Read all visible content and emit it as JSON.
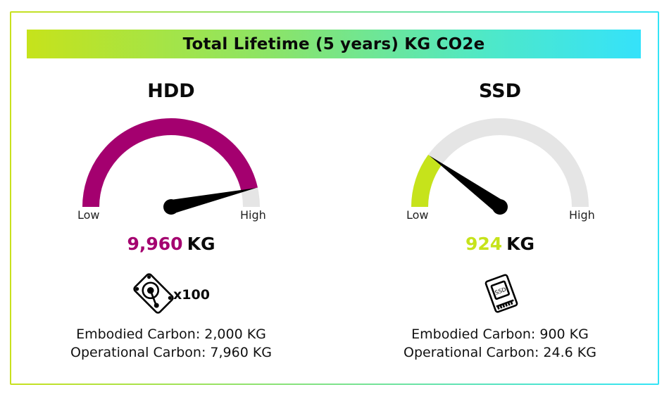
{
  "title": "Total Lifetime (5 years) KG CO2e",
  "gauges": [
    {
      "name": "HDD",
      "low_label": "Low",
      "high_label": "High",
      "value_number": "9,960",
      "value_unit": "KG",
      "fill_fraction": 0.93,
      "fill_color": "#a4006f",
      "track_color": "#e5e5e5",
      "icon": "hard-drive-icon",
      "multiplier": "x100",
      "embodied": "Embodied Carbon: 2,000 KG",
      "operational": "Operational Carbon: 7,960 KG"
    },
    {
      "name": "SSD",
      "low_label": "Low",
      "high_label": "High",
      "value_number": "924",
      "value_unit": "KG",
      "fill_fraction": 0.2,
      "fill_color": "#c6e31b",
      "track_color": "#e5e5e5",
      "icon": "ssd-icon",
      "embodied": "Embodied Carbon: 900 KG",
      "operational": "Operational Carbon: 24.6 KG"
    }
  ]
}
